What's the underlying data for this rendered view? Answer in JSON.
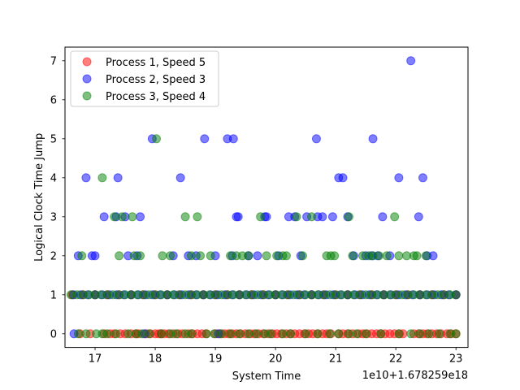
{
  "chart_data": {
    "type": "scatter",
    "xlabel": "System Time",
    "ylabel": "Logical Clock Time Jump",
    "offset_label": "1e10+1.678259e18",
    "xlim": [
      16.5,
      23.2
    ],
    "ylim": [
      -0.35,
      7.35
    ],
    "xticks": [
      17,
      18,
      19,
      20,
      21,
      22,
      23
    ],
    "yticks": [
      0,
      1,
      2,
      3,
      4,
      5,
      6,
      7
    ],
    "grid": false,
    "legend_position": "top-left",
    "series": [
      {
        "name": "Process 1, Speed 5",
        "color": "#ff0000",
        "zero_x": [
          16.75,
          16.92,
          17.15,
          17.25,
          17.32,
          17.42,
          17.5,
          17.6,
          17.68,
          17.72,
          17.85,
          17.92,
          18.0,
          18.06,
          18.1,
          18.15,
          18.22,
          18.3,
          18.38,
          18.45,
          18.55,
          18.62,
          18.7,
          18.78,
          18.85,
          19.0,
          19.08,
          19.15,
          19.22,
          19.28,
          19.35,
          19.42,
          19.5,
          19.58,
          19.65,
          19.72,
          19.8,
          19.88,
          19.95,
          20.02,
          20.1,
          20.18,
          20.25,
          20.32,
          20.4,
          20.48,
          20.55,
          20.62,
          20.7,
          20.78,
          20.85,
          20.92,
          21.05,
          21.12,
          21.2,
          21.28,
          21.38,
          21.45,
          21.52,
          21.6,
          21.68,
          21.75,
          21.82,
          21.9,
          21.98,
          22.06,
          22.12,
          22.3,
          22.38,
          22.45,
          22.52,
          22.6,
          22.68,
          22.75,
          22.85,
          22.92,
          23.0
        ],
        "ones_x": [
          16.62,
          16.8,
          17.0,
          17.2,
          17.4,
          17.6,
          17.8,
          18.0,
          18.2,
          18.4,
          18.6,
          18.8,
          19.0,
          19.2,
          19.4,
          19.6,
          19.8,
          20.0,
          20.2,
          20.4,
          20.6,
          20.8,
          21.0,
          21.2,
          21.4,
          21.6,
          21.8,
          22.0,
          22.2,
          22.4,
          22.6,
          22.8,
          23.0
        ],
        "points": []
      },
      {
        "name": "Process 2, Speed 3",
        "color": "#0000ff",
        "zero_x": [
          16.65,
          17.82,
          19.05
        ],
        "ones_x": [
          16.64,
          16.76,
          16.88,
          17.0,
          17.12,
          17.24,
          17.36,
          17.48,
          17.6,
          17.72,
          17.84,
          17.96,
          18.08,
          18.2,
          18.32,
          18.44,
          18.56,
          18.68,
          18.8,
          18.92,
          19.04,
          19.16,
          19.28,
          19.4,
          19.52,
          19.64,
          19.76,
          19.88,
          20.0,
          20.12,
          20.24,
          20.36,
          20.48,
          20.6,
          20.72,
          20.84,
          20.96,
          21.08,
          21.2,
          21.32,
          21.44,
          21.56,
          21.68,
          21.8,
          21.92,
          22.04,
          22.16,
          22.28,
          22.4,
          22.52,
          22.64,
          22.76,
          22.88,
          23.0
        ],
        "points": [
          [
            16.72,
            2
          ],
          [
            16.85,
            4
          ],
          [
            16.95,
            2
          ],
          [
            17.0,
            2
          ],
          [
            17.15,
            3
          ],
          [
            17.35,
            3
          ],
          [
            17.38,
            4
          ],
          [
            17.5,
            3
          ],
          [
            17.55,
            2
          ],
          [
            17.7,
            2
          ],
          [
            17.75,
            3
          ],
          [
            17.95,
            5
          ],
          [
            18.3,
            2
          ],
          [
            18.42,
            4
          ],
          [
            18.55,
            2
          ],
          [
            18.68,
            2
          ],
          [
            18.82,
            5
          ],
          [
            19.0,
            2
          ],
          [
            19.2,
            5
          ],
          [
            19.28,
            2
          ],
          [
            19.3,
            5
          ],
          [
            19.35,
            3
          ],
          [
            19.38,
            3
          ],
          [
            19.55,
            2
          ],
          [
            19.7,
            2
          ],
          [
            19.82,
            3
          ],
          [
            19.85,
            3
          ],
          [
            20.05,
            2
          ],
          [
            20.22,
            3
          ],
          [
            20.32,
            3
          ],
          [
            20.42,
            2
          ],
          [
            20.52,
            3
          ],
          [
            20.68,
            5
          ],
          [
            20.7,
            3
          ],
          [
            20.78,
            3
          ],
          [
            20.95,
            3
          ],
          [
            21.05,
            4
          ],
          [
            21.12,
            4
          ],
          [
            21.2,
            3
          ],
          [
            21.3,
            2
          ],
          [
            21.5,
            2
          ],
          [
            21.6,
            2
          ],
          [
            21.62,
            5
          ],
          [
            21.7,
            2
          ],
          [
            21.78,
            3
          ],
          [
            21.9,
            2
          ],
          [
            22.05,
            4
          ],
          [
            22.25,
            7
          ],
          [
            22.38,
            3
          ],
          [
            22.45,
            4
          ],
          [
            22.52,
            2
          ],
          [
            22.62,
            2
          ]
        ]
      },
      {
        "name": "Process 3, Speed 4",
        "color": "#008000",
        "zero_x": [
          16.72,
          16.85,
          17.02,
          17.12,
          17.2,
          17.35,
          17.55,
          17.68,
          17.78,
          17.9,
          18.1,
          18.25,
          18.35,
          18.5,
          18.6,
          18.85,
          18.98,
          19.1,
          19.25,
          19.4,
          19.55,
          19.68,
          19.82,
          19.92,
          20.12,
          20.25,
          20.5,
          20.7,
          20.9,
          21.05,
          21.22,
          21.35,
          21.5,
          21.75,
          22.05,
          22.25,
          22.4,
          22.55,
          22.72,
          22.9,
          23.0
        ],
        "ones_x": [
          16.6,
          16.7,
          16.8,
          16.9,
          17.0,
          17.1,
          17.2,
          17.3,
          17.4,
          17.5,
          17.6,
          17.7,
          17.8,
          17.9,
          18.0,
          18.1,
          18.2,
          18.3,
          18.4,
          18.5,
          18.6,
          18.7,
          18.8,
          18.9,
          19.0,
          19.1,
          19.2,
          19.3,
          19.4,
          19.5,
          19.6,
          19.7,
          19.8,
          19.9,
          20.0,
          20.1,
          20.2,
          20.3,
          20.4,
          20.5,
          20.6,
          20.7,
          20.8,
          20.9,
          21.0,
          21.1,
          21.2,
          21.3,
          21.4,
          21.5,
          21.6,
          21.7,
          21.8,
          21.9,
          22.0,
          22.1,
          22.2,
          22.3,
          22.4,
          22.5,
          22.6,
          22.7,
          22.8,
          22.9,
          23.0
        ],
        "points": [
          [
            16.78,
            2
          ],
          [
            17.12,
            4
          ],
          [
            17.32,
            3
          ],
          [
            17.4,
            2
          ],
          [
            17.45,
            3
          ],
          [
            17.62,
            3
          ],
          [
            17.65,
            2
          ],
          [
            17.75,
            2
          ],
          [
            18.02,
            5
          ],
          [
            18.12,
            2
          ],
          [
            18.25,
            2
          ],
          [
            18.5,
            3
          ],
          [
            18.6,
            2
          ],
          [
            18.7,
            3
          ],
          [
            18.75,
            2
          ],
          [
            18.92,
            2
          ],
          [
            19.25,
            2
          ],
          [
            19.35,
            2
          ],
          [
            19.45,
            2
          ],
          [
            19.55,
            2
          ],
          [
            19.75,
            3
          ],
          [
            19.85,
            2
          ],
          [
            20.02,
            2
          ],
          [
            20.12,
            2
          ],
          [
            20.18,
            2
          ],
          [
            20.35,
            3
          ],
          [
            20.45,
            2
          ],
          [
            20.6,
            3
          ],
          [
            20.85,
            2
          ],
          [
            20.92,
            2
          ],
          [
            20.98,
            2
          ],
          [
            21.22,
            3
          ],
          [
            21.28,
            2
          ],
          [
            21.45,
            2
          ],
          [
            21.55,
            2
          ],
          [
            21.62,
            2
          ],
          [
            21.72,
            2
          ],
          [
            21.85,
            2
          ],
          [
            21.98,
            3
          ],
          [
            22.05,
            2
          ],
          [
            22.18,
            2
          ],
          [
            22.3,
            2
          ],
          [
            22.35,
            2
          ],
          [
            22.5,
            2
          ]
        ]
      }
    ]
  }
}
